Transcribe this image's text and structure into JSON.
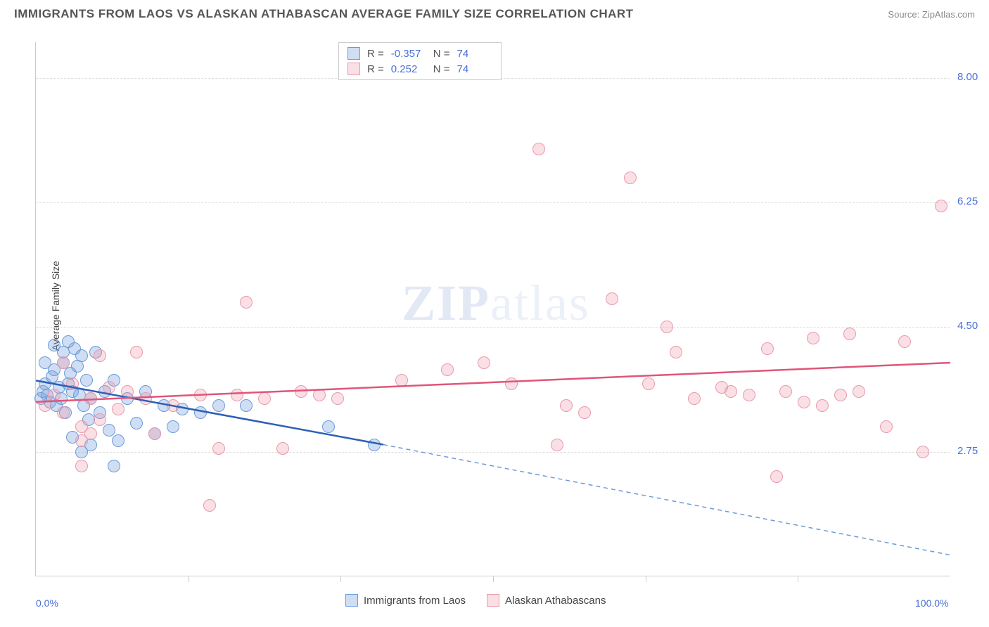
{
  "header": {
    "title": "IMMIGRANTS FROM LAOS VS ALASKAN ATHABASCAN AVERAGE FAMILY SIZE CORRELATION CHART",
    "source_label": "Source:",
    "source_name": "ZipAtlas.com"
  },
  "watermark": {
    "left": "ZIP",
    "right": "atlas"
  },
  "chart": {
    "type": "scatter",
    "ylabel": "Average Family Size",
    "xlim": [
      0,
      100
    ],
    "ylim": [
      1.0,
      8.5
    ],
    "yticks": [
      2.75,
      4.5,
      6.25,
      8.0
    ],
    "xticks_labels": {
      "left": "0.0%",
      "right": "100.0%"
    },
    "xticks_minor": [
      16.67,
      33.33,
      50.0,
      66.67,
      83.33
    ],
    "background_color": "#ffffff",
    "grid_color": "#dddddd",
    "point_radius": 9,
    "series": [
      {
        "id": "laos",
        "name": "Immigrants from Laos",
        "fill": "rgba(120,160,220,0.35)",
        "stroke": "#6b9bd8",
        "line_color": "#2e5fb5",
        "dash_color": "#6b9bd8",
        "R": "-0.357",
        "N": "74",
        "trend": {
          "x1": 0,
          "y1": 3.75,
          "x2_solid": 38,
          "y2_solid": 2.85,
          "x2": 100,
          "y2": 1.3
        },
        "points": [
          [
            0.5,
            3.5
          ],
          [
            0.8,
            3.6
          ],
          [
            1.0,
            3.7
          ],
          [
            1.2,
            3.55
          ],
          [
            1.5,
            3.45
          ],
          [
            1.8,
            3.8
          ],
          [
            2.0,
            3.9
          ],
          [
            2.2,
            3.4
          ],
          [
            2.5,
            3.65
          ],
          [
            2.8,
            3.5
          ],
          [
            3.0,
            4.0
          ],
          [
            3.2,
            3.3
          ],
          [
            3.5,
            3.7
          ],
          [
            3.8,
            3.85
          ],
          [
            4.0,
            3.6
          ],
          [
            4.2,
            4.2
          ],
          [
            4.5,
            3.95
          ],
          [
            4.8,
            3.55
          ],
          [
            5.0,
            4.1
          ],
          [
            5.2,
            3.4
          ],
          [
            5.5,
            3.75
          ],
          [
            5.8,
            3.2
          ],
          [
            6.0,
            3.5
          ],
          [
            6.5,
            4.15
          ],
          [
            7.0,
            3.3
          ],
          [
            7.5,
            3.6
          ],
          [
            8.0,
            3.05
          ],
          [
            8.5,
            3.75
          ],
          [
            4.0,
            2.95
          ],
          [
            2.0,
            4.25
          ],
          [
            3.0,
            4.15
          ],
          [
            1.0,
            4.0
          ],
          [
            9.0,
            2.9
          ],
          [
            10.0,
            3.5
          ],
          [
            11.0,
            3.15
          ],
          [
            12.0,
            3.6
          ],
          [
            13.0,
            3.0
          ],
          [
            14.0,
            3.4
          ],
          [
            15.0,
            3.1
          ],
          [
            16.0,
            3.35
          ],
          [
            18.0,
            3.3
          ],
          [
            8.5,
            2.55
          ],
          [
            5.0,
            2.75
          ],
          [
            6.0,
            2.85
          ],
          [
            20.0,
            3.4
          ],
          [
            23.0,
            3.4
          ],
          [
            32.0,
            3.1
          ],
          [
            37.0,
            2.85
          ],
          [
            3.5,
            4.3
          ]
        ]
      },
      {
        "id": "athabascan",
        "name": "Alaskan Athabascans",
        "fill": "rgba(240,150,170,0.30)",
        "stroke": "#e89aad",
        "line_color": "#e0557a",
        "R": "0.252",
        "N": "74",
        "trend": {
          "x1": 0,
          "y1": 3.45,
          "x2": 100,
          "y2": 4.0
        },
        "points": [
          [
            1.0,
            3.4
          ],
          [
            2.0,
            3.55
          ],
          [
            3.0,
            3.3
          ],
          [
            4.0,
            3.7
          ],
          [
            5.0,
            3.1
          ],
          [
            6.0,
            3.5
          ],
          [
            7.0,
            3.2
          ],
          [
            8.0,
            3.65
          ],
          [
            3.0,
            4.0
          ],
          [
            5.0,
            2.9
          ],
          [
            7.0,
            4.1
          ],
          [
            9.0,
            3.35
          ],
          [
            10.0,
            3.6
          ],
          [
            11.0,
            4.15
          ],
          [
            6.0,
            3.0
          ],
          [
            12.0,
            3.5
          ],
          [
            13.0,
            3.0
          ],
          [
            15.0,
            3.4
          ],
          [
            5.0,
            2.55
          ],
          [
            18.0,
            3.55
          ],
          [
            20.0,
            2.8
          ],
          [
            22.0,
            3.55
          ],
          [
            19.0,
            2.0
          ],
          [
            23.0,
            4.85
          ],
          [
            25.0,
            3.5
          ],
          [
            27.0,
            2.8
          ],
          [
            29.0,
            3.6
          ],
          [
            31.0,
            3.55
          ],
          [
            33.0,
            3.5
          ],
          [
            40.0,
            3.75
          ],
          [
            45.0,
            3.9
          ],
          [
            49.0,
            4.0
          ],
          [
            52.0,
            3.7
          ],
          [
            55.0,
            7.0
          ],
          [
            57.0,
            2.85
          ],
          [
            58.0,
            3.4
          ],
          [
            60.0,
            3.3
          ],
          [
            63.0,
            4.9
          ],
          [
            65.0,
            6.6
          ],
          [
            67.0,
            3.7
          ],
          [
            69.0,
            4.5
          ],
          [
            70.0,
            4.15
          ],
          [
            72.0,
            3.5
          ],
          [
            75.0,
            3.65
          ],
          [
            76.0,
            3.6
          ],
          [
            78.0,
            3.55
          ],
          [
            80.0,
            4.2
          ],
          [
            81.0,
            2.4
          ],
          [
            82.0,
            3.6
          ],
          [
            84.0,
            3.45
          ],
          [
            85.0,
            4.35
          ],
          [
            86.0,
            3.4
          ],
          [
            88.0,
            3.55
          ],
          [
            89.0,
            4.4
          ],
          [
            90.0,
            3.6
          ],
          [
            93.0,
            3.1
          ],
          [
            95.0,
            4.3
          ],
          [
            97.0,
            2.75
          ],
          [
            99.0,
            6.2
          ]
        ]
      }
    ],
    "stats_box": {
      "R_label": "R =",
      "N_label": "N ="
    }
  }
}
